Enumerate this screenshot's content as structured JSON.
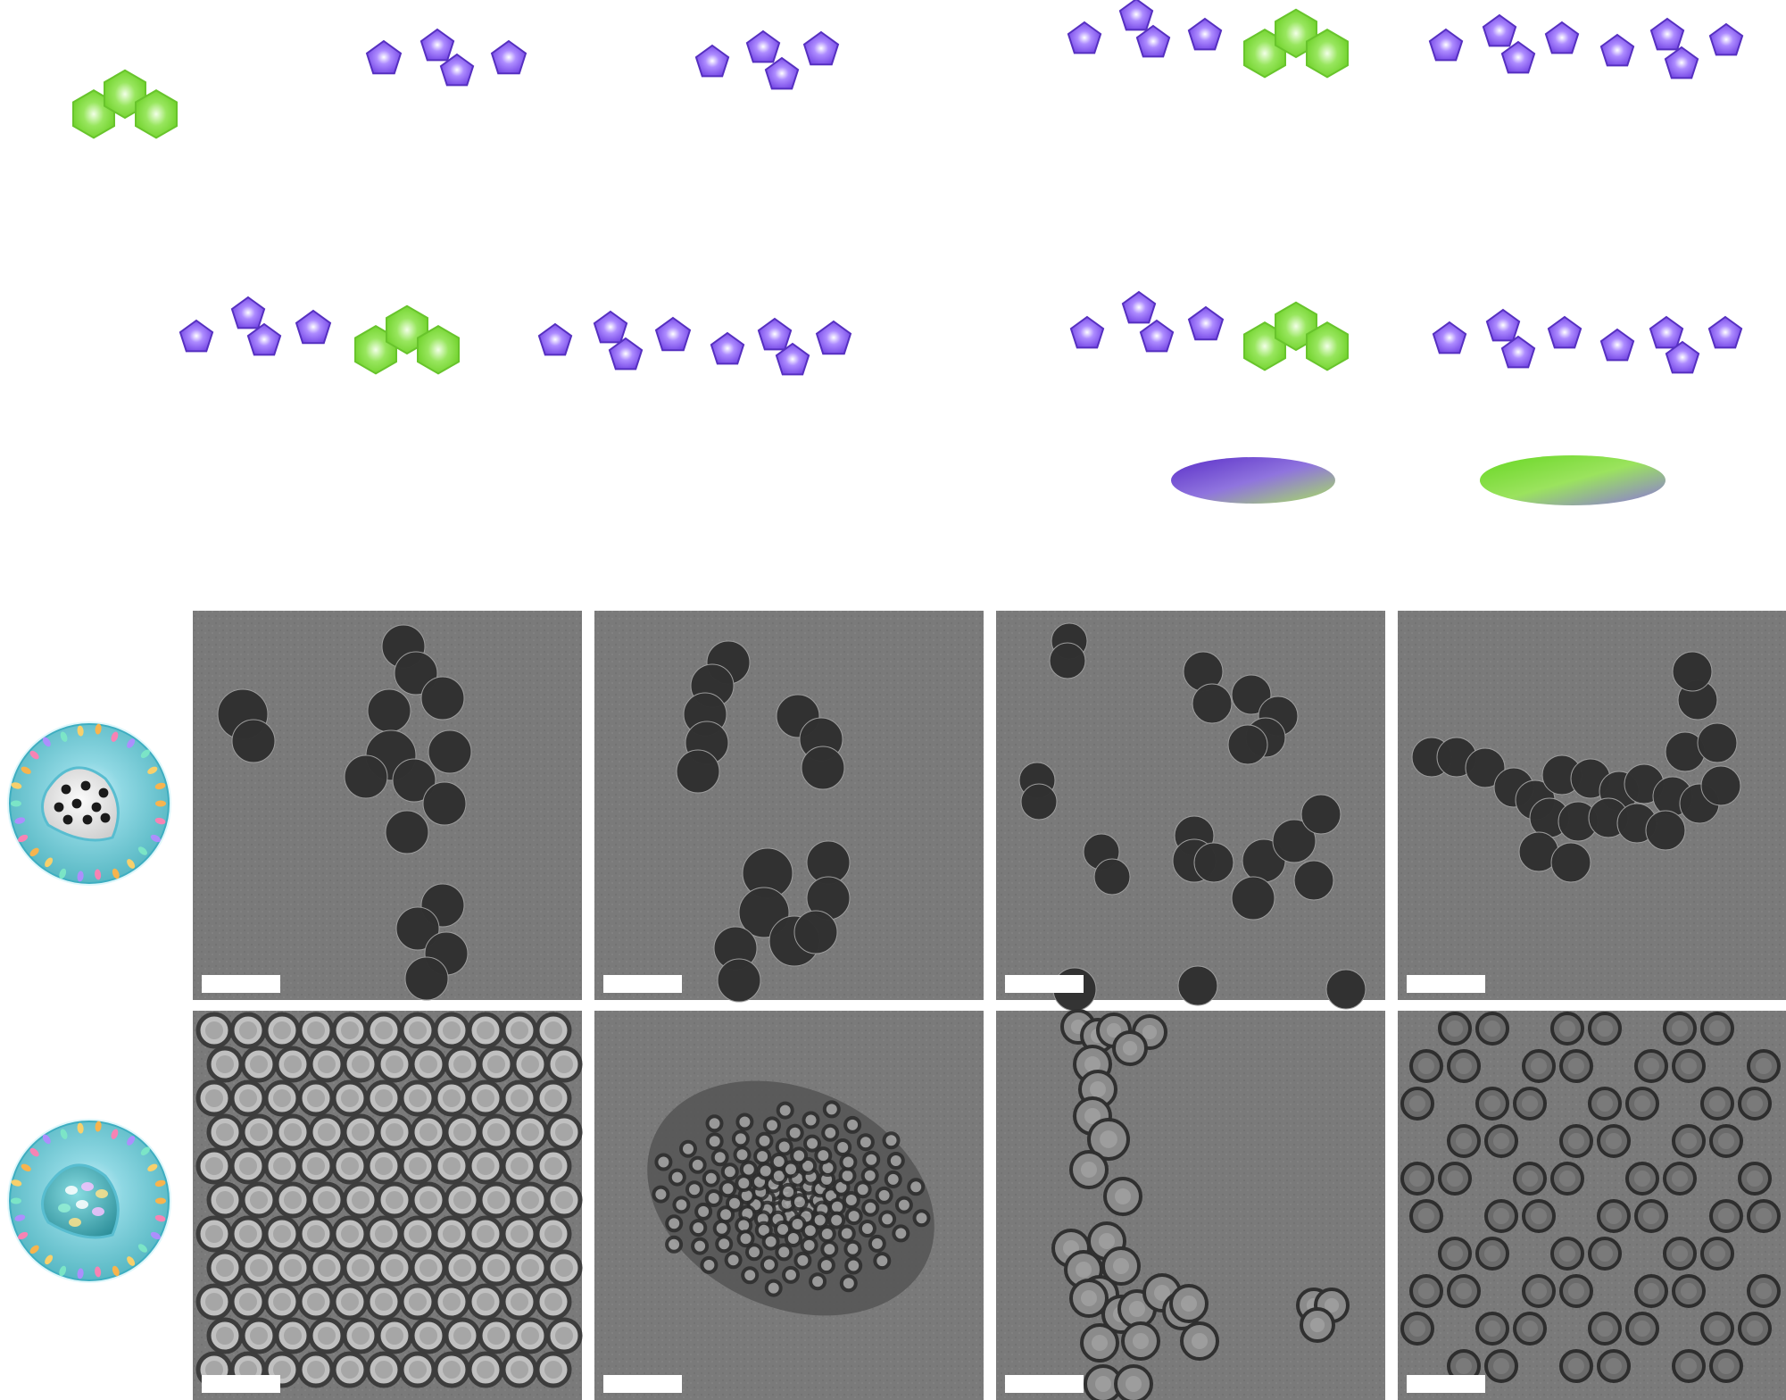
{
  "figure": {
    "background": "#ffffff",
    "colors": {
      "green_monomer": "#86dc3b",
      "green_monomer_edge": "#63b82a",
      "purple_monomer": "#6f3fe0",
      "purple_monomer_edge": "#4b2bb6",
      "tem_background_dark": "#7a7a7a",
      "tem_background_light": "#b5b5b5",
      "particle_dark": "#2f2f2f",
      "particle_hollow": "#505050",
      "scale_bar": "#ffffff"
    },
    "icons": {
      "green_monomer": "triple-hexagon-icon",
      "purple_monomer": "pentagon-icon",
      "dense_particle": "porous-sphere-icon",
      "hollow_particle": "hollow-sphere-icon"
    },
    "schematic_rows": 2,
    "tem_grid": {
      "rows": 2,
      "columns": 4,
      "row_types": [
        "solid-particles",
        "hollow-particles"
      ]
    }
  }
}
